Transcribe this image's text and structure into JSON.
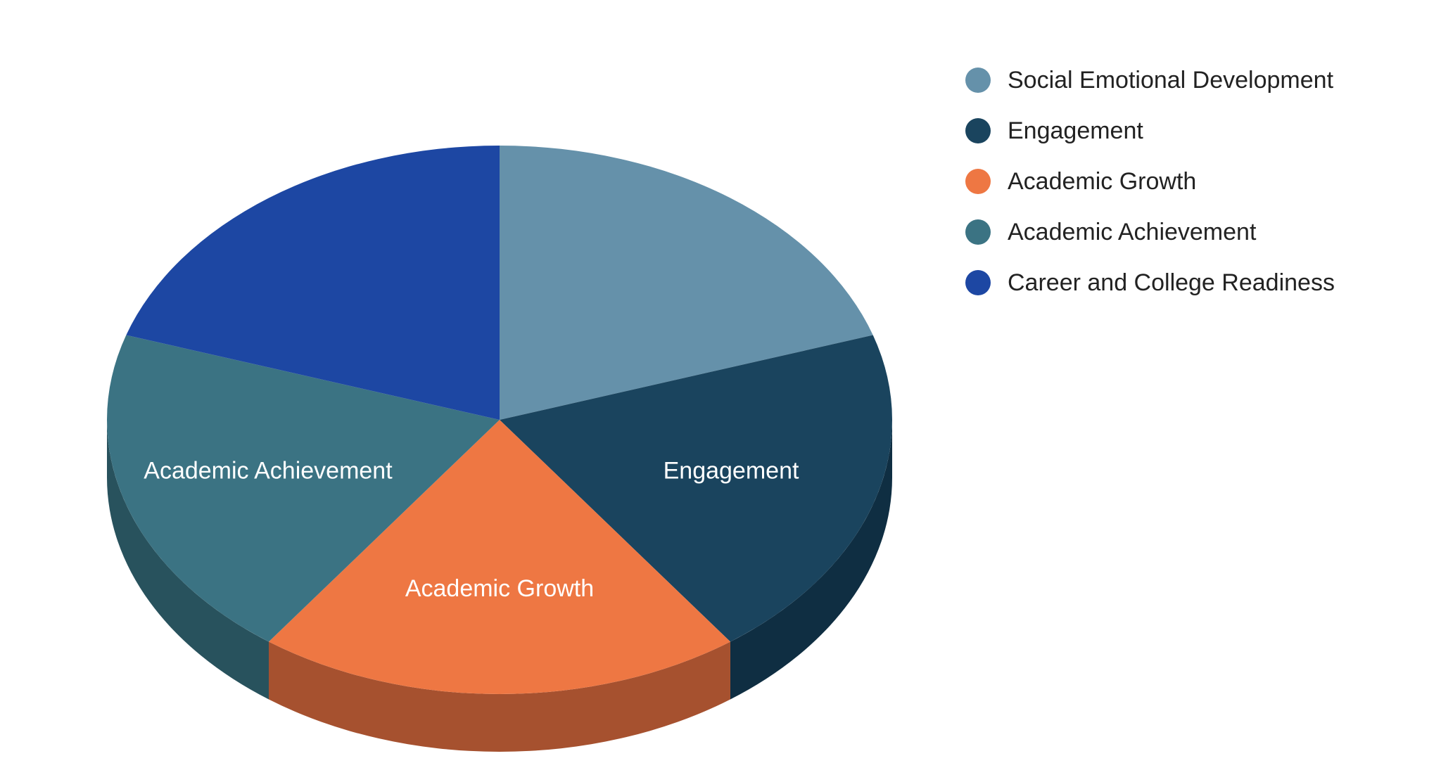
{
  "chart_data": {
    "type": "pie",
    "variant": "3d",
    "title": "",
    "legend_position": "top-right",
    "start_angle_deg": 0,
    "direction": "clockwise",
    "slices": [
      {
        "name": "Social Emotional Development",
        "value": 20,
        "color": "#6591AA",
        "side_color": "#4F7488",
        "label": ""
      },
      {
        "name": "Engagement",
        "value": 20,
        "color": "#1A445E",
        "side_color": "#0F2E42",
        "label": "Engagement"
      },
      {
        "name": "Academic Growth",
        "value": 20,
        "color": "#EE7743",
        "side_color": "#A6512F",
        "label": "Academic Growth"
      },
      {
        "name": "Academic Achievement",
        "value": 20,
        "color": "#3B7383",
        "side_color": "#28525D",
        "label": "Academic Achievement"
      },
      {
        "name": "Career and College Readiness",
        "value": 20,
        "color": "#1D47A3",
        "side_color": "#14327A",
        "label": ""
      }
    ]
  }
}
